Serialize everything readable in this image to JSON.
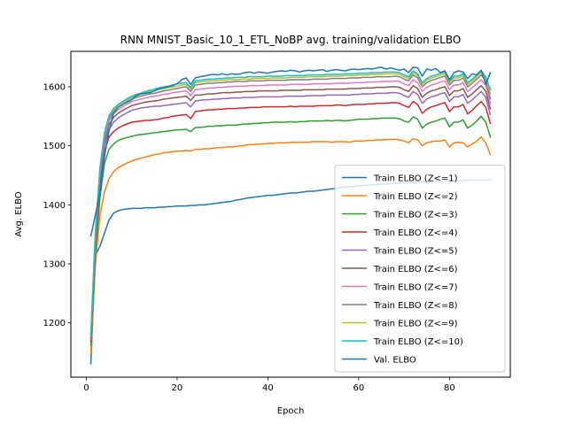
{
  "chart_data": {
    "type": "line",
    "title": "RNN MNIST_Basic_10_1_ETL_NoBP avg. training/validation ELBO",
    "xlabel": "Epoch",
    "ylabel": "Avg. ELBO",
    "xlim": [
      -3.4,
      93.4
    ],
    "ylim": [
      1108,
      1660
    ],
    "xticks": [
      0,
      20,
      40,
      60,
      80
    ],
    "yticks": [
      1200,
      1300,
      1400,
      1500,
      1600
    ],
    "grid": false,
    "legend_position": "lower-right",
    "x": [
      1,
      2,
      3,
      4,
      5,
      6,
      7,
      8,
      9,
      10,
      11,
      12,
      13,
      14,
      15,
      16,
      17,
      18,
      19,
      20,
      21,
      22,
      23,
      24,
      25,
      26,
      27,
      28,
      29,
      30,
      31,
      32,
      33,
      34,
      35,
      36,
      37,
      38,
      39,
      40,
      41,
      42,
      43,
      44,
      45,
      46,
      47,
      48,
      49,
      50,
      51,
      52,
      53,
      54,
      55,
      56,
      57,
      58,
      59,
      60,
      61,
      62,
      63,
      64,
      65,
      66,
      67,
      68,
      69,
      70,
      71,
      72,
      73,
      74,
      75,
      76,
      77,
      78,
      79,
      80,
      81,
      82,
      83,
      84,
      85,
      86,
      87,
      88,
      89
    ],
    "series": [
      {
        "name": "Train ELBO (Z<=1)",
        "color": "#1f77b4",
        "values": [
          1131,
          1314,
          1330,
          1352,
          1374,
          1386,
          1390,
          1392,
          1393,
          1394,
          1394,
          1394,
          1395,
          1395,
          1395,
          1396,
          1396,
          1397,
          1397,
          1398,
          1398,
          1398,
          1399,
          1399,
          1400,
          1400,
          1401,
          1402,
          1403,
          1404,
          1405,
          1406,
          1408,
          1409,
          1411,
          1412,
          1413,
          1414,
          1415,
          1416,
          1416,
          1417,
          1418,
          1419,
          1420,
          1420,
          1421,
          1422,
          1423,
          1423,
          1424,
          1425,
          1426,
          1427,
          1428,
          1429,
          1430,
          1431,
          1431,
          1432,
          1433,
          1433,
          1434,
          1434,
          1435,
          1435,
          1436,
          1436,
          1437,
          1437,
          1438,
          1438,
          1438,
          1439,
          1439,
          1439,
          1440,
          1440,
          1440,
          1441,
          1441,
          1441,
          1441,
          1442,
          1442,
          1442,
          1442,
          1442,
          1443
        ]
      },
      {
        "name": "Train ELBO (Z<=2)",
        "color": "#ff7f0e",
        "values": [
          1148,
          1300,
          1382,
          1422,
          1444,
          1456,
          1463,
          1467,
          1471,
          1474,
          1477,
          1479,
          1481,
          1483,
          1485,
          1486,
          1488,
          1489,
          1490,
          1491,
          1491,
          1492,
          1491,
          1494,
          1494,
          1495,
          1495,
          1496,
          1497,
          1497,
          1498,
          1498,
          1499,
          1500,
          1501,
          1502,
          1502,
          1503,
          1503,
          1504,
          1504,
          1505,
          1505,
          1505,
          1506,
          1506,
          1506,
          1506,
          1506,
          1507,
          1507,
          1507,
          1507,
          1506,
          1507,
          1507,
          1507,
          1506,
          1508,
          1508,
          1508,
          1509,
          1509,
          1510,
          1510,
          1510,
          1511,
          1511,
          1510,
          1508,
          1505,
          1512,
          1510,
          1500,
          1505,
          1507,
          1508,
          1508,
          1510,
          1498,
          1505,
          1506,
          1505,
          1498,
          1503,
          1508,
          1515,
          1505,
          1485
        ]
      },
      {
        "name": "Train ELBO (Z<=3)",
        "color": "#2ca02c",
        "values": [
          1162,
          1318,
          1412,
          1470,
          1494,
          1503,
          1509,
          1512,
          1514,
          1516,
          1518,
          1519,
          1520,
          1521,
          1522,
          1523,
          1524,
          1525,
          1526,
          1527,
          1527,
          1528,
          1524,
          1531,
          1531,
          1532,
          1533,
          1533,
          1534,
          1534,
          1535,
          1535,
          1535,
          1536,
          1537,
          1537,
          1538,
          1538,
          1539,
          1539,
          1540,
          1540,
          1540,
          1540,
          1541,
          1540,
          1541,
          1541,
          1542,
          1542,
          1542,
          1542,
          1543,
          1542,
          1543,
          1543,
          1542,
          1543,
          1544,
          1545,
          1545,
          1545,
          1546,
          1546,
          1547,
          1547,
          1547,
          1547,
          1546,
          1542,
          1540,
          1549,
          1545,
          1530,
          1537,
          1540,
          1542,
          1545,
          1547,
          1532,
          1540,
          1540,
          1544,
          1530,
          1535,
          1542,
          1550,
          1540,
          1515
        ]
      },
      {
        "name": "Train ELBO (Z<=4)",
        "color": "#d62728",
        "values": [
          1168,
          1330,
          1430,
          1490,
          1515,
          1524,
          1530,
          1534,
          1537,
          1540,
          1541,
          1542,
          1543,
          1543,
          1544,
          1545,
          1547,
          1548,
          1550,
          1551,
          1552,
          1553,
          1546,
          1558,
          1559,
          1560,
          1561,
          1561,
          1562,
          1562,
          1563,
          1563,
          1563,
          1564,
          1564,
          1565,
          1565,
          1565,
          1566,
          1566,
          1566,
          1566,
          1566,
          1566,
          1567,
          1566,
          1567,
          1567,
          1567,
          1567,
          1568,
          1568,
          1568,
          1568,
          1569,
          1569,
          1568,
          1569,
          1570,
          1570,
          1570,
          1571,
          1571,
          1572,
          1572,
          1572,
          1573,
          1573,
          1572,
          1568,
          1565,
          1575,
          1570,
          1555,
          1562,
          1566,
          1568,
          1571,
          1573,
          1558,
          1566,
          1566,
          1570,
          1554,
          1560,
          1568,
          1575,
          1565,
          1538
        ]
      },
      {
        "name": "Train ELBO (Z<=5)",
        "color": "#9467bd",
        "values": [
          1172,
          1338,
          1440,
          1500,
          1528,
          1540,
          1547,
          1552,
          1556,
          1560,
          1562,
          1564,
          1565,
          1566,
          1567,
          1567,
          1568,
          1569,
          1570,
          1571,
          1572,
          1573,
          1566,
          1576,
          1577,
          1578,
          1578,
          1579,
          1579,
          1580,
          1580,
          1581,
          1581,
          1581,
          1582,
          1582,
          1582,
          1583,
          1583,
          1583,
          1583,
          1583,
          1583,
          1584,
          1584,
          1584,
          1584,
          1584,
          1585,
          1585,
          1585,
          1585,
          1586,
          1586,
          1586,
          1586,
          1586,
          1586,
          1587,
          1587,
          1588,
          1588,
          1588,
          1589,
          1589,
          1589,
          1590,
          1590,
          1589,
          1585,
          1582,
          1592,
          1587,
          1572,
          1579,
          1583,
          1585,
          1588,
          1590,
          1575,
          1583,
          1583,
          1587,
          1572,
          1578,
          1585,
          1592,
          1582,
          1553
        ]
      },
      {
        "name": "Train ELBO (Z<=6)",
        "color": "#8c564b",
        "values": [
          1175,
          1344,
          1448,
          1508,
          1536,
          1548,
          1555,
          1560,
          1564,
          1568,
          1570,
          1572,
          1574,
          1575,
          1576,
          1577,
          1579,
          1580,
          1581,
          1582,
          1583,
          1584,
          1577,
          1586,
          1586,
          1587,
          1588,
          1588,
          1589,
          1590,
          1590,
          1590,
          1591,
          1591,
          1592,
          1592,
          1592,
          1593,
          1593,
          1593,
          1593,
          1593,
          1594,
          1594,
          1594,
          1594,
          1594,
          1595,
          1595,
          1595,
          1595,
          1595,
          1596,
          1596,
          1596,
          1596,
          1596,
          1597,
          1597,
          1597,
          1598,
          1598,
          1598,
          1599,
          1599,
          1599,
          1600,
          1600,
          1599,
          1595,
          1592,
          1602,
          1597,
          1582,
          1589,
          1593,
          1595,
          1598,
          1600,
          1585,
          1593,
          1593,
          1597,
          1582,
          1588,
          1595,
          1602,
          1592,
          1563
        ]
      },
      {
        "name": "Train ELBO (Z<=7)",
        "color": "#e377c2",
        "values": [
          1177,
          1348,
          1453,
          1513,
          1542,
          1554,
          1561,
          1566,
          1571,
          1575,
          1577,
          1579,
          1581,
          1583,
          1584,
          1585,
          1587,
          1588,
          1590,
          1591,
          1592,
          1593,
          1585,
          1595,
          1596,
          1597,
          1598,
          1598,
          1599,
          1599,
          1600,
          1600,
          1601,
          1601,
          1601,
          1602,
          1602,
          1602,
          1602,
          1603,
          1603,
          1603,
          1603,
          1603,
          1604,
          1604,
          1604,
          1604,
          1604,
          1605,
          1605,
          1605,
          1605,
          1605,
          1606,
          1606,
          1606,
          1606,
          1607,
          1607,
          1607,
          1608,
          1608,
          1608,
          1609,
          1609,
          1609,
          1610,
          1609,
          1605,
          1602,
          1612,
          1607,
          1592,
          1599,
          1603,
          1605,
          1608,
          1610,
          1595,
          1603,
          1603,
          1607,
          1592,
          1598,
          1605,
          1612,
          1602,
          1572
        ]
      },
      {
        "name": "Train ELBO (Z<=8)",
        "color": "#7f7f7f",
        "values": [
          1178,
          1351,
          1457,
          1517,
          1546,
          1558,
          1565,
          1570,
          1575,
          1579,
          1582,
          1584,
          1586,
          1588,
          1589,
          1591,
          1593,
          1594,
          1596,
          1597,
          1599,
          1600,
          1592,
          1603,
          1604,
          1605,
          1606,
          1606,
          1607,
          1607,
          1608,
          1608,
          1609,
          1609,
          1609,
          1610,
          1610,
          1610,
          1610,
          1611,
          1611,
          1611,
          1611,
          1611,
          1612,
          1612,
          1612,
          1612,
          1612,
          1613,
          1613,
          1613,
          1613,
          1614,
          1614,
          1614,
          1614,
          1615,
          1615,
          1615,
          1616,
          1616,
          1616,
          1617,
          1617,
          1617,
          1617,
          1618,
          1617,
          1613,
          1610,
          1620,
          1615,
          1600,
          1607,
          1611,
          1613,
          1616,
          1618,
          1603,
          1611,
          1611,
          1615,
          1600,
          1606,
          1613,
          1620,
          1610,
          1580
        ]
      },
      {
        "name": "Train ELBO (Z<=9)",
        "color": "#bcbd22",
        "values": [
          1179,
          1353,
          1460,
          1520,
          1549,
          1561,
          1568,
          1573,
          1578,
          1582,
          1585,
          1587,
          1590,
          1592,
          1593,
          1595,
          1597,
          1598,
          1600,
          1601,
          1603,
          1604,
          1596,
          1607,
          1608,
          1609,
          1610,
          1610,
          1611,
          1611,
          1612,
          1612,
          1612,
          1613,
          1613,
          1613,
          1614,
          1614,
          1614,
          1614,
          1615,
          1615,
          1615,
          1615,
          1616,
          1616,
          1616,
          1616,
          1617,
          1617,
          1617,
          1617,
          1618,
          1618,
          1618,
          1618,
          1619,
          1619,
          1619,
          1620,
          1620,
          1620,
          1621,
          1621,
          1621,
          1622,
          1622,
          1622,
          1621,
          1617,
          1614,
          1624,
          1619,
          1604,
          1611,
          1615,
          1617,
          1620,
          1622,
          1607,
          1615,
          1615,
          1619,
          1604,
          1610,
          1617,
          1624,
          1614,
          1588
        ]
      },
      {
        "name": "Train ELBO (Z<=10)",
        "color": "#17becf",
        "values": [
          1180,
          1355,
          1462,
          1522,
          1551,
          1563,
          1570,
          1575,
          1580,
          1584,
          1587,
          1589,
          1592,
          1594,
          1596,
          1598,
          1600,
          1601,
          1603,
          1605,
          1606,
          1607,
          1599,
          1610,
          1611,
          1612,
          1613,
          1613,
          1614,
          1614,
          1615,
          1615,
          1616,
          1616,
          1616,
          1617,
          1617,
          1617,
          1617,
          1618,
          1618,
          1618,
          1618,
          1619,
          1619,
          1619,
          1619,
          1619,
          1620,
          1620,
          1620,
          1620,
          1621,
          1621,
          1621,
          1621,
          1622,
          1622,
          1622,
          1623,
          1623,
          1623,
          1624,
          1624,
          1624,
          1625,
          1625,
          1625,
          1624,
          1620,
          1617,
          1627,
          1622,
          1607,
          1614,
          1618,
          1620,
          1623,
          1625,
          1610,
          1618,
          1618,
          1622,
          1607,
          1613,
          1620,
          1627,
          1617,
          1595
        ]
      },
      {
        "name": "Val. ELBO",
        "color": "#1f77b4",
        "values": [
          1347,
          1383,
          1420,
          1482,
          1525,
          1555,
          1565,
          1570,
          1574,
          1578,
          1585,
          1588,
          1589,
          1590,
          1593,
          1597,
          1598,
          1600,
          1602,
          1605,
          1612,
          1615,
          1604,
          1615,
          1617,
          1618,
          1620,
          1621,
          1620,
          1622,
          1620,
          1622,
          1621,
          1622,
          1624,
          1625,
          1623,
          1625,
          1624,
          1623,
          1625,
          1626,
          1627,
          1626,
          1628,
          1627,
          1625,
          1627,
          1628,
          1627,
          1628,
          1629,
          1626,
          1628,
          1629,
          1628,
          1627,
          1629,
          1630,
          1629,
          1630,
          1631,
          1630,
          1632,
          1633,
          1630,
          1632,
          1630,
          1628,
          1630,
          1624,
          1633,
          1632,
          1618,
          1630,
          1628,
          1631,
          1624,
          1627,
          1612,
          1624,
          1627,
          1625,
          1614,
          1622,
          1620,
          1628,
          1604,
          1624
        ]
      }
    ]
  }
}
